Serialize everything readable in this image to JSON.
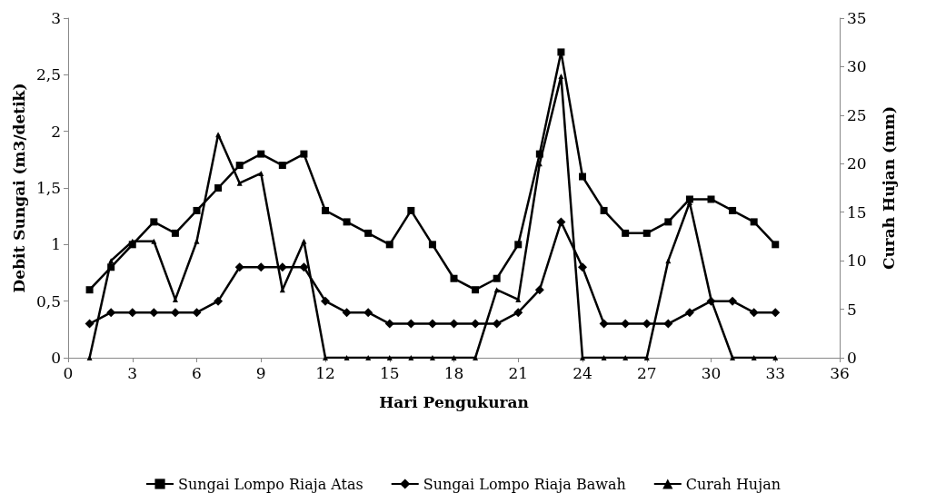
{
  "chart_data": {
    "type": "line",
    "xlabel": "Hari Pengukuran",
    "ylabel": "Debit Sungai (m3/detik)",
    "y2label": "Curah Hujan (mm)",
    "x": [
      1,
      2,
      3,
      4,
      5,
      6,
      7,
      8,
      9,
      10,
      11,
      12,
      13,
      14,
      15,
      16,
      17,
      18,
      19,
      20,
      21,
      22,
      23,
      24,
      25,
      26,
      27,
      28,
      29,
      30,
      31,
      32,
      33
    ],
    "xlim": [
      0,
      36
    ],
    "xticks": [
      0,
      3,
      6,
      9,
      12,
      15,
      18,
      21,
      24,
      27,
      30,
      33,
      36
    ],
    "ylim": [
      0,
      3
    ],
    "yticks": [
      0,
      {
        "value": 0.5,
        "label": "0,5"
      },
      1,
      {
        "value": 1.5,
        "label": "1,5"
      },
      2,
      {
        "value": 2.5,
        "label": "2,5"
      },
      3
    ],
    "y2lim": [
      0,
      35
    ],
    "y2ticks": [
      0,
      5,
      10,
      15,
      20,
      25,
      30,
      35
    ],
    "grid": false,
    "legend": "bottom",
    "line_style": "solid",
    "series": [
      {
        "name": "Sungai Lompo Riaja Atas",
        "color": "#000000",
        "marker": "square",
        "values": [
          0.6,
          0.8,
          1.0,
          1.2,
          1.1,
          1.3,
          1.5,
          1.7,
          1.8,
          1.7,
          1.8,
          1.3,
          1.2,
          1.1,
          1.0,
          1.3,
          1.0,
          0.7,
          0.6,
          0.7,
          1.0,
          1.8,
          2.7,
          1.6,
          1.3,
          1.1,
          1.1,
          1.2,
          1.4,
          1.4,
          1.3,
          1.2,
          1.0
        ]
      },
      {
        "name": "Sungai Lompo Riaja Bawah",
        "color": "#000000",
        "marker": "diamond",
        "values": [
          0.3,
          0.4,
          0.4,
          0.4,
          0.4,
          0.4,
          0.5,
          0.8,
          0.8,
          0.8,
          0.8,
          0.5,
          0.4,
          0.4,
          0.3,
          0.3,
          0.3,
          0.3,
          0.3,
          0.3,
          0.4,
          0.6,
          1.2,
          0.8,
          0.3,
          0.3,
          0.3,
          0.3,
          0.4,
          0.5,
          0.5,
          0.4,
          0.4
        ]
      },
      {
        "name": "Curah Hujan",
        "color": "#000000",
        "marker": "triangle",
        "axis": "y2",
        "values": [
          0,
          10,
          12,
          12,
          6,
          12,
          23,
          18,
          19,
          7,
          12,
          0,
          0,
          0,
          0,
          0,
          0,
          0,
          0,
          7,
          6,
          20,
          29,
          0,
          0,
          0,
          0,
          10,
          16,
          6,
          0,
          0,
          0
        ]
      }
    ]
  }
}
